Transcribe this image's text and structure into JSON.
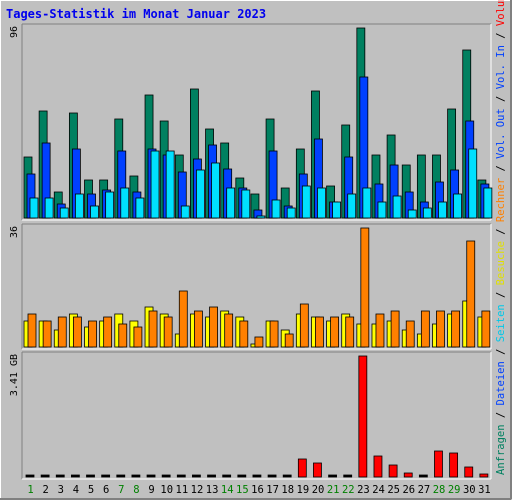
{
  "title": "Tages-Statistik im Monat Januar 2023",
  "colors": {
    "background": "#c0c0c0",
    "title": "#0000ee",
    "frame_light": "#ffffff",
    "frame_dark": "#808080",
    "anfragen": "#008060",
    "dateien": "#0040ff",
    "seiten": "#00e0ff",
    "besuche": "#ffff00",
    "rechner": "#ff8000",
    "volumen": "#ff0000",
    "weekday_label": "#008000",
    "weekend_label": "#008040",
    "day_label": "#000000"
  },
  "right_axis_labels": {
    "top": [
      {
        "text": "Anfragen",
        "color": "#008060"
      },
      {
        "text": " / ",
        "color": "#000000"
      },
      {
        "text": "Dateien",
        "color": "#0040ff"
      },
      {
        "text": " / ",
        "color": "#000000"
      },
      {
        "text": "Seiten",
        "color": "#00c8e8"
      },
      {
        "text": " / ",
        "color": "#000000"
      },
      {
        "text": "Besuche",
        "color": "#e0e000"
      },
      {
        "text": " / ",
        "color": "#000000"
      },
      {
        "text": "Rechner",
        "color": "#ff8000"
      },
      {
        "text": " / ",
        "color": "#000000"
      },
      {
        "text": "Vol. Out",
        "color": "#0040ff"
      },
      {
        "text": " / ",
        "color": "#000000"
      },
      {
        "text": "Vol. In",
        "color": "#0040ff"
      },
      {
        "text": " / ",
        "color": "#000000"
      },
      {
        "text": "Volumen",
        "color": "#ff0000"
      }
    ]
  },
  "chart_data": {
    "type": "bar",
    "title": "Tages-Statistik im Monat Januar 2023",
    "categories": [
      "1",
      "2",
      "3",
      "4",
      "5",
      "6",
      "7",
      "8",
      "9",
      "10",
      "11",
      "12",
      "13",
      "14",
      "15",
      "16",
      "17",
      "18",
      "19",
      "20",
      "21",
      "22",
      "23",
      "24",
      "25",
      "26",
      "27",
      "28",
      "29",
      "30",
      "31"
    ],
    "highlighted_days": [
      "1",
      "7",
      "8",
      "14",
      "15",
      "21",
      "22",
      "28",
      "29"
    ],
    "panels": [
      {
        "name": "requests",
        "max_label": "96",
        "ylim": [
          0,
          96
        ],
        "series": [
          {
            "name": "Anfragen",
            "values": [
              31,
              54,
              13,
              53,
              19,
              19,
              50,
              21,
              62,
              49,
              32,
              65,
              45,
              38,
              20,
              12,
              50,
              15,
              35,
              64,
              16,
              47,
              96,
              32,
              42,
              27,
              32,
              32,
              55,
              85,
              19
            ]
          },
          {
            "name": "Dateien",
            "values": [
              22,
              38,
              7,
              35,
              12,
              14,
              34,
              13,
              35,
              32,
              23,
              30,
              37,
              25,
              15,
              4,
              34,
              6,
              22,
              40,
              8,
              31,
              71,
              17,
              27,
              13,
              8,
              18,
              24,
              49,
              17
            ]
          },
          {
            "name": "Seiten",
            "values": [
              10,
              10,
              5,
              12,
              6,
              13,
              15,
              10,
              34,
              34,
              6,
              24,
              28,
              15,
              14,
              1,
              9,
              5,
              16,
              15,
              8,
              12,
              15,
              8,
              11,
              4,
              5,
              8,
              12,
              35,
              15
            ]
          }
        ]
      },
      {
        "name": "visits",
        "max_label": "36",
        "ylim": [
          0,
          36
        ],
        "series": [
          {
            "name": "Besuche",
            "values": [
              8,
              8,
              5,
              10,
              6,
              8,
              10,
              8,
              12,
              10,
              4,
              10,
              9,
              11,
              9,
              1,
              8,
              5,
              10,
              9,
              8,
              10,
              7,
              7,
              8,
              5,
              4,
              7,
              10,
              14,
              9
            ]
          },
          {
            "name": "Rechner",
            "values": [
              10,
              8,
              9,
              9,
              8,
              9,
              7,
              6,
              11,
              9,
              17,
              11,
              12,
              10,
              8,
              3,
              8,
              4,
              13,
              9,
              9,
              9,
              36,
              10,
              11,
              8,
              11,
              11,
              11,
              32,
              11
            ]
          }
        ]
      },
      {
        "name": "volume",
        "max_label": "3.41 GB",
        "ylim": [
          0,
          3.41
        ],
        "series": [
          {
            "name": "Volumen",
            "unit": "GB",
            "values": [
              0.02,
              0.02,
              0.02,
              0.02,
              0.02,
              0.02,
              0.02,
              0.02,
              0.02,
              0.02,
              0.02,
              0.02,
              0.02,
              0.02,
              0.02,
              0.02,
              0.02,
              0.02,
              0.52,
              0.39,
              0.02,
              0.02,
              3.41,
              0.58,
              0.35,
              0.1,
              0.04,
              0.73,
              0.67,
              0.29,
              0.08
            ]
          }
        ]
      }
    ]
  }
}
